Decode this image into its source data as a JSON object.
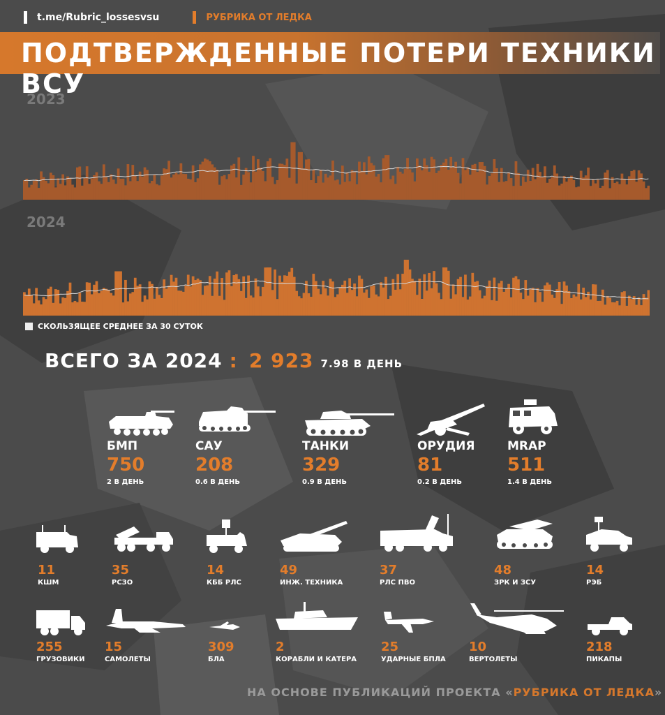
{
  "header": {
    "channel": "t.me/Rubric_lossesvsu",
    "rubric": "РУБРИКА ОТ ЛЕДКА",
    "title": "ПОДТВЕРЖДЕННЫЕ ПОТЕРИ ТЕХНИКИ ВСУ"
  },
  "colors": {
    "accent": "#e37d2b",
    "bars_2023": "#a65a2c",
    "bars_2024": "#cf7330",
    "moving_avg": "#d8d8d8",
    "background": "#4a4a4a"
  },
  "chart_data": [
    {
      "type": "bar",
      "title": "2023",
      "note": "daily confirmed losses with 30-day moving average",
      "y_scale": "relative daily count (unlabeled axis)",
      "grid": false
    },
    {
      "type": "bar",
      "title": "2024",
      "note": "daily confirmed losses with 30-day moving average",
      "y_scale": "relative daily count (unlabeled axis)",
      "grid": false
    }
  ],
  "legend": {
    "label": "СКОЛЬЗЯЩЕЕ СРЕДНЕЕ ЗА 30 СУТОК"
  },
  "total": {
    "label": "ВСЕГО ЗА 2024",
    "separator": ":",
    "value": "2 923",
    "per_day": "7.98 В ДЕНЬ"
  },
  "major": [
    {
      "label": "БМП",
      "value": "750",
      "rate": "2 В ДЕНЬ",
      "icon": "ifv-icon"
    },
    {
      "label": "САУ",
      "value": "208",
      "rate": "0.6 В ДЕНЬ",
      "icon": "spg-icon"
    },
    {
      "label": "ТАНКИ",
      "value": "329",
      "rate": "0.9 В ДЕНЬ",
      "icon": "tank-icon"
    },
    {
      "label": "ОРУДИЯ",
      "value": "81",
      "rate": "0.2 В ДЕНЬ",
      "icon": "howitzer-icon"
    },
    {
      "label": "MRAP",
      "value": "511",
      "rate": "1.4 В ДЕНЬ",
      "icon": "mrap-icon"
    }
  ],
  "minor_row1": [
    {
      "label": "КШМ",
      "value": "11",
      "icon": "command-vehicle-icon"
    },
    {
      "label": "РСЗО",
      "value": "35",
      "icon": "mlrs-icon"
    },
    {
      "label": "КББ РЛС",
      "value": "14",
      "icon": "counter-battery-radar-icon"
    },
    {
      "label": "ИНЖ. ТЕХНИКА",
      "value": "49",
      "icon": "engineering-vehicle-icon"
    },
    {
      "label": "РЛС ПВО",
      "value": "37",
      "icon": "air-defense-radar-icon"
    },
    {
      "label": "ЗРК И ЗСУ",
      "value": "48",
      "icon": "sam-system-icon"
    },
    {
      "label": "РЭБ",
      "value": "14",
      "icon": "ew-vehicle-icon"
    }
  ],
  "minor_row2": [
    {
      "label": "ГРУЗОВИКИ",
      "value": "255",
      "icon": "truck-icon"
    },
    {
      "label": "САМОЛЕТЫ",
      "value": "15",
      "icon": "aircraft-icon"
    },
    {
      "label": "БЛА",
      "value": "309",
      "icon": "uav-icon"
    },
    {
      "label": "КОРАБЛИ И КАТЕРА",
      "value": "2",
      "icon": "ship-icon"
    },
    {
      "label": "УДАРНЫЕ БПЛА",
      "value": "25",
      "icon": "strike-drone-icon"
    },
    {
      "label": "ВЕРТОЛЕТЫ",
      "value": "10",
      "icon": "helicopter-icon"
    },
    {
      "label": "ПИКАПЫ",
      "value": "218",
      "icon": "pickup-icon"
    }
  ],
  "footer": {
    "prefix": "НА ОСНОВЕ ПУБЛИКАЦИЙ ПРОЕКТА «",
    "highlight": "РУБРИКА ОТ ЛЕДКА",
    "suffix": "»"
  }
}
